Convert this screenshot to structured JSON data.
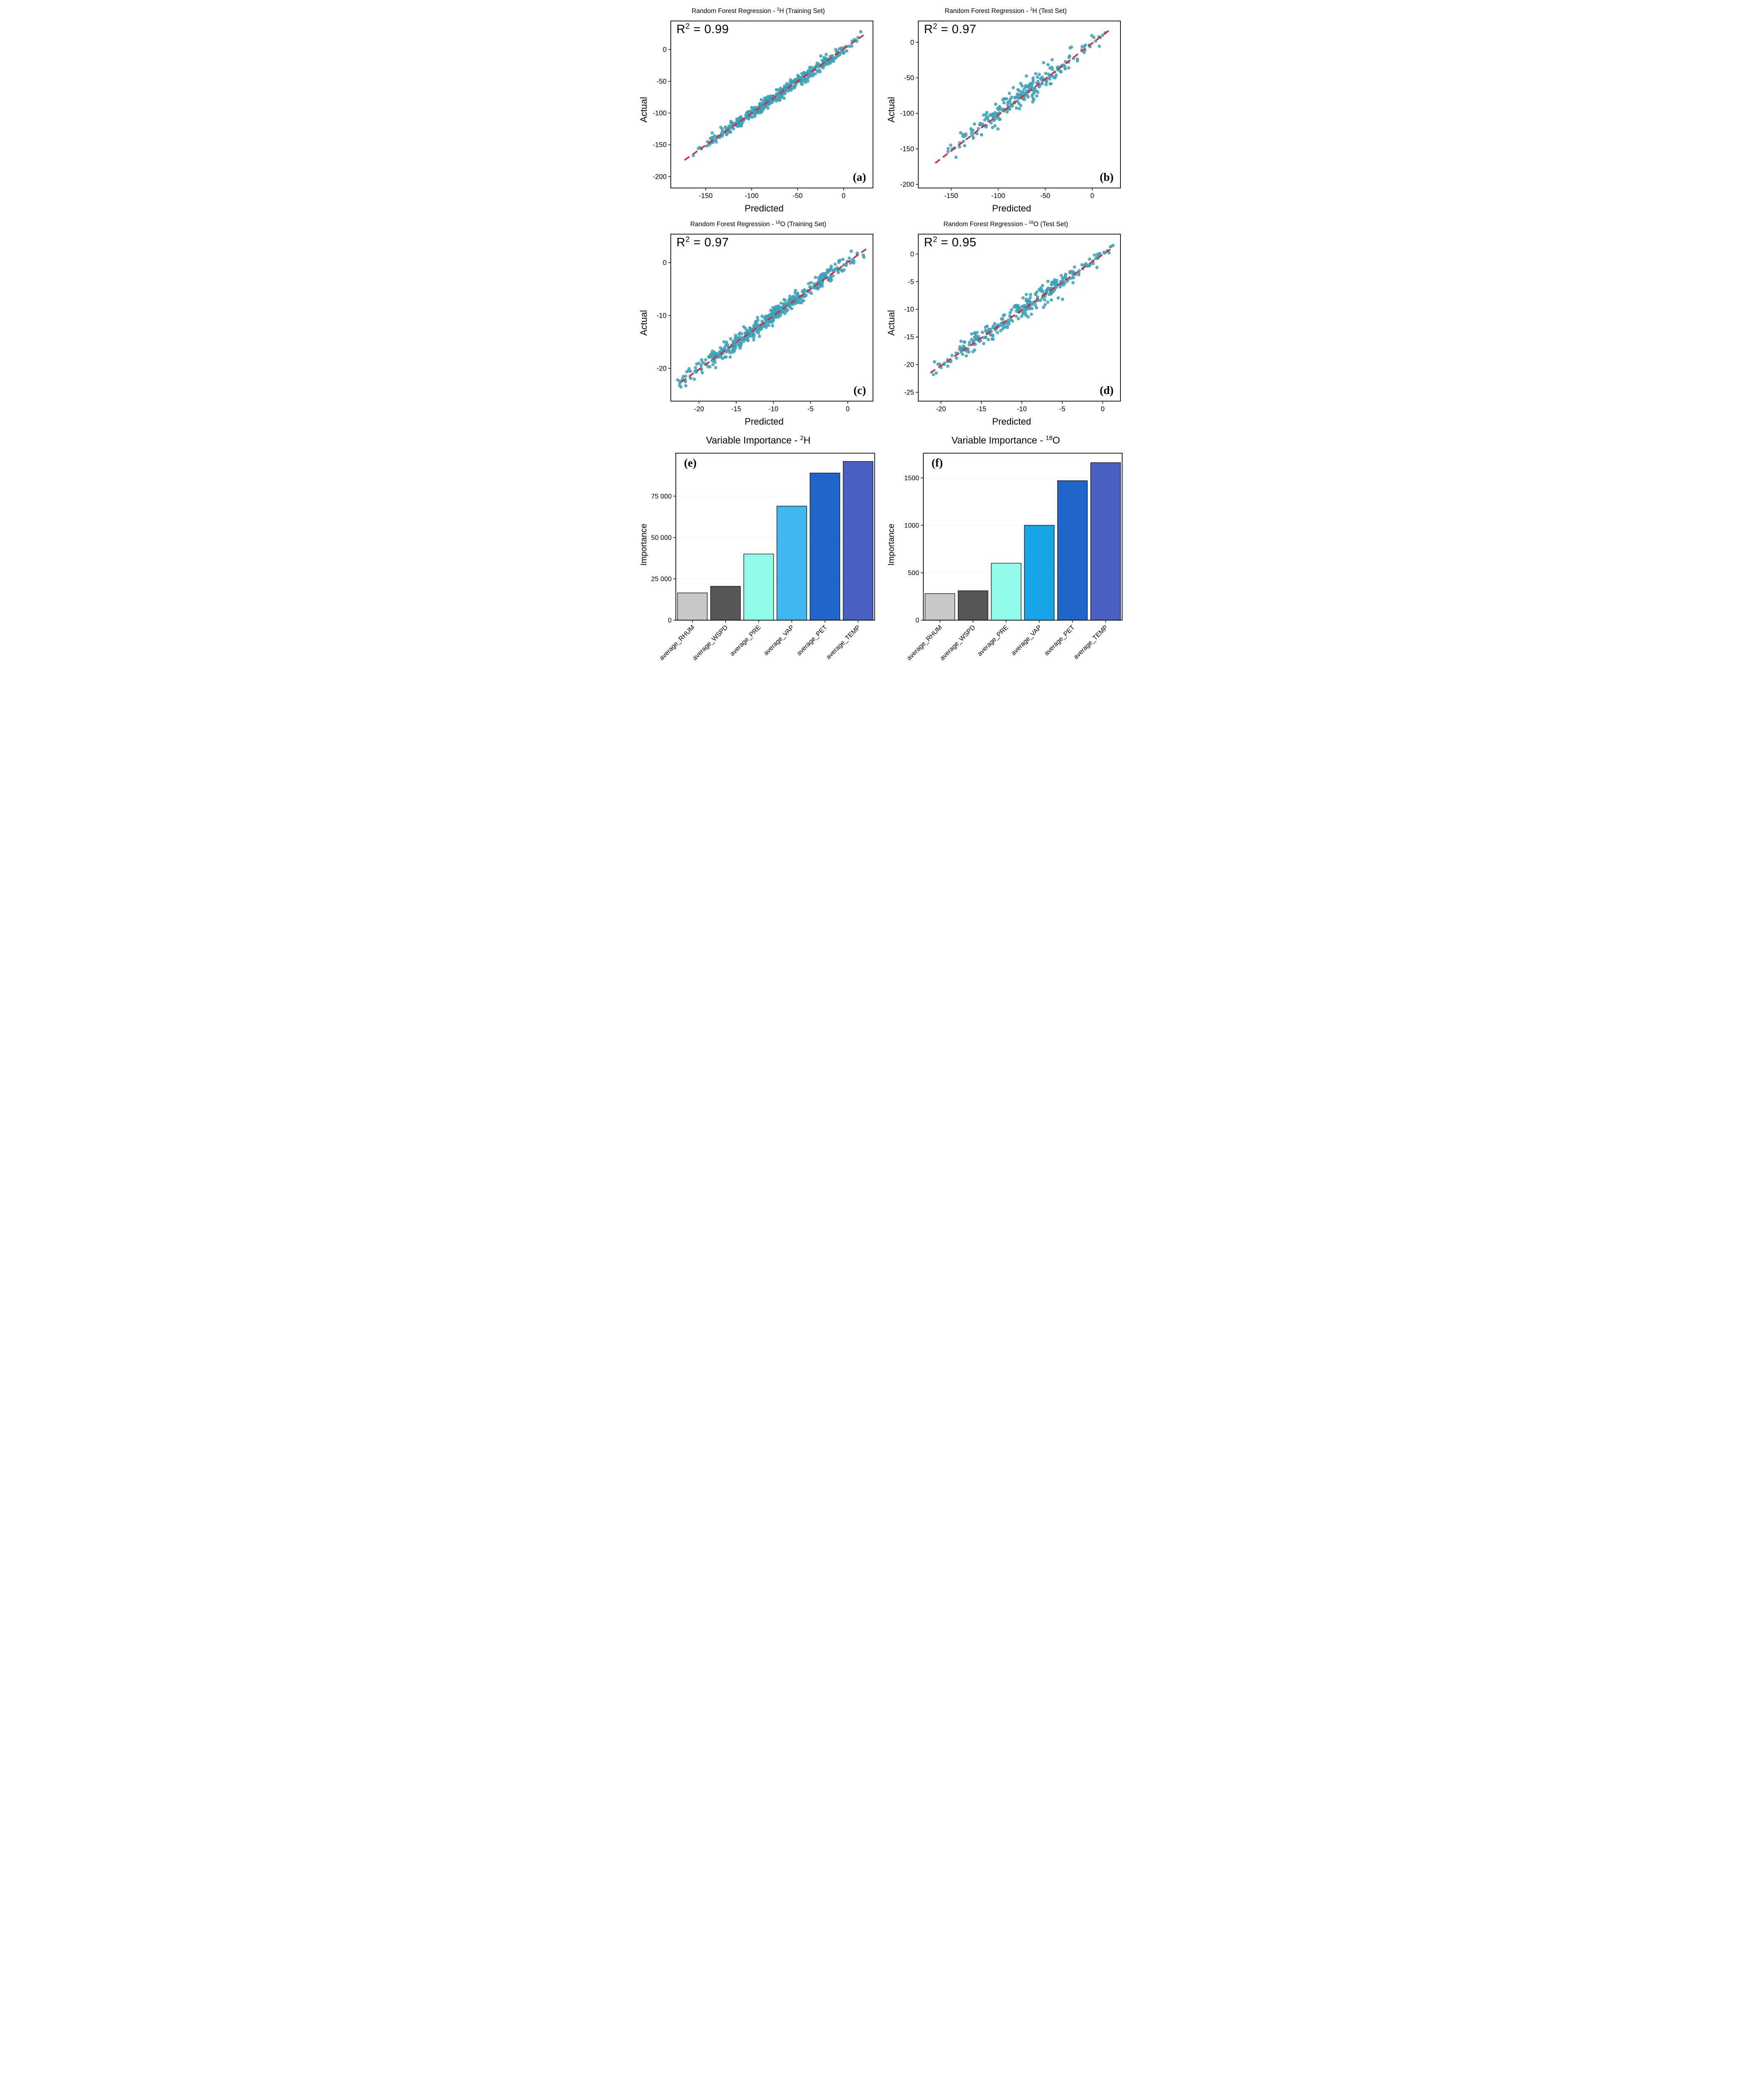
{
  "figure": {
    "background": "#ffffff"
  },
  "colors": {
    "point_fill": "#45aec5",
    "point_stroke": "#2e8fa6",
    "fit_line": "#d22f3f",
    "axis": "#000000",
    "grid": "#efefef",
    "plot_bg": "#ffffff"
  },
  "chart_data": [
    {
      "type": "scatter",
      "panel_label": "(a)",
      "title": {
        "prefix": "Random Forest Regression - ",
        "sup": "2",
        "suffix": "H (Training Set)"
      },
      "r2": {
        "prefix": "R",
        "sup": "2",
        "suffix": " = 0.99"
      },
      "xlabel": "Predicted",
      "ylabel": "Actual",
      "xlim": [
        -188,
        32
      ],
      "ylim": [
        -218,
        45
      ],
      "x_ticks": [
        -150,
        -100,
        -50,
        0
      ],
      "y_ticks": [
        0,
        -50,
        -100,
        -150,
        -200
      ],
      "fit_line": {
        "x1": -173,
        "y1": -174,
        "x2": 24,
        "y2": 25
      },
      "points": {
        "n": 500,
        "x_range": [
          -166,
          21
        ],
        "slope": 1,
        "intercept": 0,
        "noise_sd": 4.5,
        "seed": 101
      }
    },
    {
      "type": "scatter",
      "panel_label": "(b)",
      "title": {
        "prefix": "Random Forest Regression - ",
        "sup": "2",
        "suffix": "H (Test Set)"
      },
      "r2": {
        "prefix": "R",
        "sup": "2",
        "suffix": " = 0.97"
      },
      "xlabel": "Predicted",
      "ylabel": "Actual",
      "xlim": [
        -185,
        30
      ],
      "ylim": [
        -205,
        30
      ],
      "x_ticks": [
        -150,
        -100,
        -50,
        0
      ],
      "y_ticks": [
        0,
        -50,
        -100,
        -150,
        -200
      ],
      "fit_line": {
        "x1": -167,
        "y1": -170,
        "x2": 19,
        "y2": 18
      },
      "points": {
        "n": 250,
        "x_range": [
          -162,
          14
        ],
        "slope": 1,
        "intercept": 0,
        "noise_sd": 7.5,
        "seed": 202
      }
    },
    {
      "type": "scatter",
      "panel_label": "(c)",
      "title": {
        "prefix": "Random Forest Regression - ",
        "sup": "18",
        "suffix": "O (Training Set)"
      },
      "r2": {
        "prefix": "R",
        "sup": "2",
        "suffix": " = 0.97"
      },
      "xlabel": "Predicted",
      "ylabel": "Actual",
      "xlim": [
        -23.8,
        3.4
      ],
      "ylim": [
        -26.2,
        5.4
      ],
      "x_ticks": [
        -20,
        -15,
        -10,
        -5,
        0
      ],
      "y_ticks": [
        0,
        -10,
        -20
      ],
      "fit_line": {
        "x1": -22.4,
        "y1": -22.6,
        "x2": 2.5,
        "y2": 2.6
      },
      "points": {
        "n": 500,
        "x_range": [
          -23.2,
          2.8
        ],
        "slope": 1,
        "intercept": 0,
        "noise_sd": 0.75,
        "seed": 303
      }
    },
    {
      "type": "scatter",
      "panel_label": "(d)",
      "title": {
        "prefix": "Random Forest Regression - ",
        "sup": "18",
        "suffix": "O (Test Set)"
      },
      "r2": {
        "prefix": "R",
        "sup": "2",
        "suffix": " = 0.95"
      },
      "xlabel": "Predicted",
      "ylabel": "Actual",
      "xlim": [
        -22.8,
        2.2
      ],
      "ylim": [
        -26.6,
        3.6
      ],
      "x_ticks": [
        -20,
        -15,
        -10,
        -5,
        0
      ],
      "y_ticks": [
        0,
        -5,
        -10,
        -15,
        -20,
        -25
      ],
      "fit_line": {
        "x1": -21.3,
        "y1": -21.5,
        "x2": 1.0,
        "y2": 0.9
      },
      "points": {
        "n": 320,
        "x_range": [
          -21.3,
          1.4
        ],
        "slope": 1,
        "intercept": 0,
        "noise_sd": 0.85,
        "seed": 404
      }
    },
    {
      "type": "bar",
      "panel_label": "(e)",
      "title": {
        "prefix": "Variable Importance - ",
        "sup": "2",
        "suffix": "H"
      },
      "ylabel": "Importance",
      "categories": [
        "average_RHUM",
        "average_WSPD",
        "average_PRE",
        "average_VAP",
        "average_PET",
        "average_TEMP"
      ],
      "values": [
        16500,
        20500,
        40000,
        69000,
        89000,
        96000
      ],
      "bar_colors": [
        "#c8c8c8",
        "#575757",
        "#90fbe8",
        "#41b6f0",
        "#2065c8",
        "#4a5fc2"
      ],
      "y_ticks": [
        0,
        25000,
        50000,
        75000
      ],
      "y_tick_labels": [
        "0",
        "25 000",
        "50 000",
        "75 000"
      ],
      "ylim": [
        0,
        101000
      ]
    },
    {
      "type": "bar",
      "panel_label": "(f)",
      "title": {
        "prefix": "Variable Importance - ",
        "sup": "18",
        "suffix": "O"
      },
      "ylabel": "Importance",
      "categories": [
        "average_RHUM",
        "average_WSPD",
        "average_PRE",
        "average_VAP",
        "average_PET",
        "average_TEMP"
      ],
      "values": [
        280,
        310,
        600,
        1000,
        1470,
        1660
      ],
      "bar_colors": [
        "#c8c8c8",
        "#575757",
        "#90fbe8",
        "#15a5e8",
        "#2065c8",
        "#4a5fc2"
      ],
      "y_ticks": [
        0,
        500,
        1000,
        1500
      ],
      "y_tick_labels": [
        "0",
        "500",
        "1000",
        "1500"
      ],
      "ylim": [
        0,
        1760
      ]
    }
  ]
}
